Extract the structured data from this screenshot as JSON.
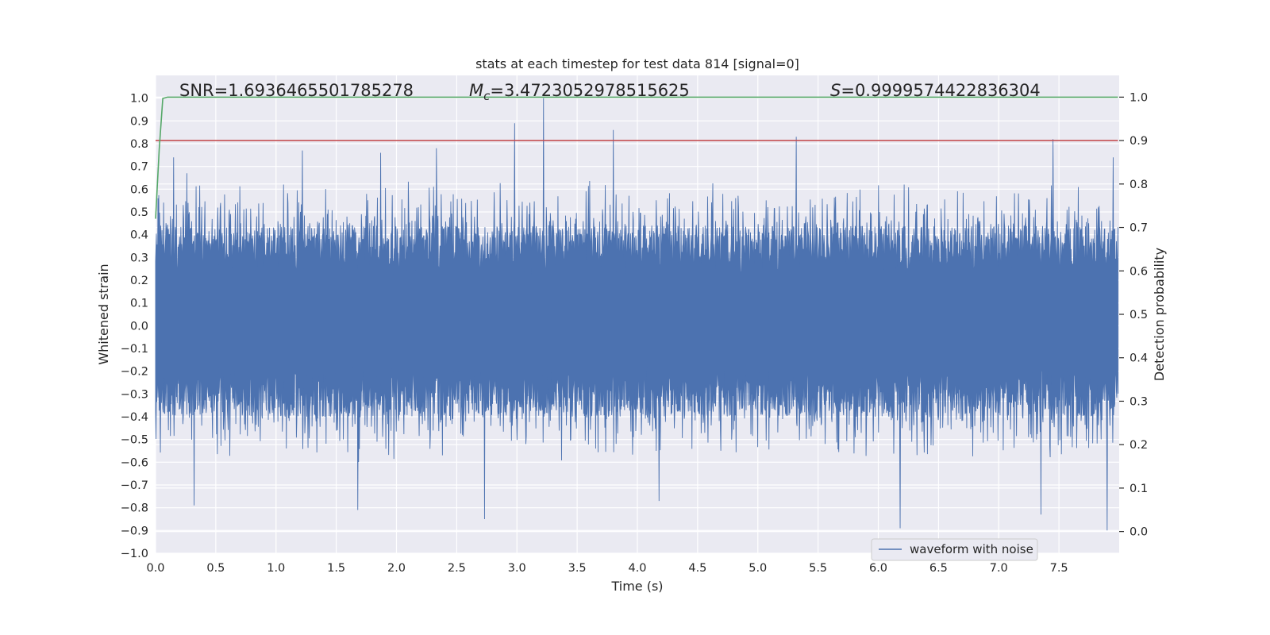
{
  "chart_data": {
    "type": "line",
    "title": "stats at each timestep for test data 814 [signal=0]",
    "xlabel": "Time (s)",
    "ylabel": "Whitened strain",
    "y2label": "Detection probability",
    "xlim": [
      0.0,
      8.0
    ],
    "ylim": [
      -1.0,
      1.1
    ],
    "y2lim": [
      -0.05,
      1.05
    ],
    "x_ticks": [
      "0.0",
      "0.5",
      "1.0",
      "1.5",
      "2.0",
      "2.5",
      "3.0",
      "3.5",
      "4.0",
      "4.5",
      "5.0",
      "5.5",
      "6.0",
      "6.5",
      "7.0",
      "7.5"
    ],
    "y_ticks": [
      "−1.0",
      "−0.9",
      "−0.8",
      "−0.7",
      "−0.6",
      "−0.5",
      "−0.4",
      "−0.3",
      "−0.2",
      "−0.1",
      "0.0",
      "0.1",
      "0.2",
      "0.3",
      "0.4",
      "0.5",
      "0.6",
      "0.7",
      "0.8",
      "0.9",
      "1.0"
    ],
    "y2_ticks": [
      "0.0",
      "0.1",
      "0.2",
      "0.3",
      "0.4",
      "0.5",
      "0.6",
      "0.7",
      "0.8",
      "0.9",
      "1.0"
    ],
    "grid": true,
    "legend_position": "lower-right",
    "annotations": {
      "snr": "SNR=1.6936465501785278",
      "mc_symbol": "M",
      "mc_sub": "c",
      "mc_value": "=3.4723052978515625",
      "s_symbol": "S",
      "s_value": "=0.9999574422836304"
    },
    "series": [
      {
        "name": "waveform with noise",
        "axis": "left",
        "color": "#4c72b0",
        "note_duration_s": 7.99,
        "envelope_peaks": [
          {
            "x": 0.02,
            "y": 0.56
          },
          {
            "x": 0.15,
            "y": 0.74
          },
          {
            "x": 0.26,
            "y": 0.67
          },
          {
            "x": 1.22,
            "y": 0.77
          },
          {
            "x": 1.87,
            "y": 0.76
          },
          {
            "x": 2.33,
            "y": 0.78
          },
          {
            "x": 2.98,
            "y": 0.89
          },
          {
            "x": 3.22,
            "y": 1.0
          },
          {
            "x": 3.8,
            "y": 0.86
          },
          {
            "x": 5.32,
            "y": 0.83
          },
          {
            "x": 7.45,
            "y": 0.82
          },
          {
            "x": 7.95,
            "y": 0.74
          }
        ],
        "envelope_troughs": [
          {
            "x": 0.32,
            "y": -0.79
          },
          {
            "x": 1.68,
            "y": -0.81
          },
          {
            "x": 2.73,
            "y": -0.85
          },
          {
            "x": 4.18,
            "y": -0.77
          },
          {
            "x": 6.18,
            "y": -0.89
          },
          {
            "x": 7.35,
            "y": -0.83
          },
          {
            "x": 7.9,
            "y": -0.9
          }
        ]
      },
      {
        "name": "",
        "axis": "right",
        "color": "#55a868",
        "x": [
          0.0,
          0.03,
          0.06,
          0.1,
          0.2,
          0.5,
          1.0,
          2.0,
          4.0,
          6.0,
          7.99
        ],
        "y": [
          0.72,
          0.88,
          0.997,
          1.0,
          1.0,
          1.0,
          1.0,
          1.0,
          1.0,
          1.0,
          1.0
        ]
      },
      {
        "name": "",
        "axis": "right",
        "color": "#c44e52",
        "x": [
          0.0,
          7.99
        ],
        "y": [
          0.9,
          0.9
        ]
      }
    ]
  }
}
